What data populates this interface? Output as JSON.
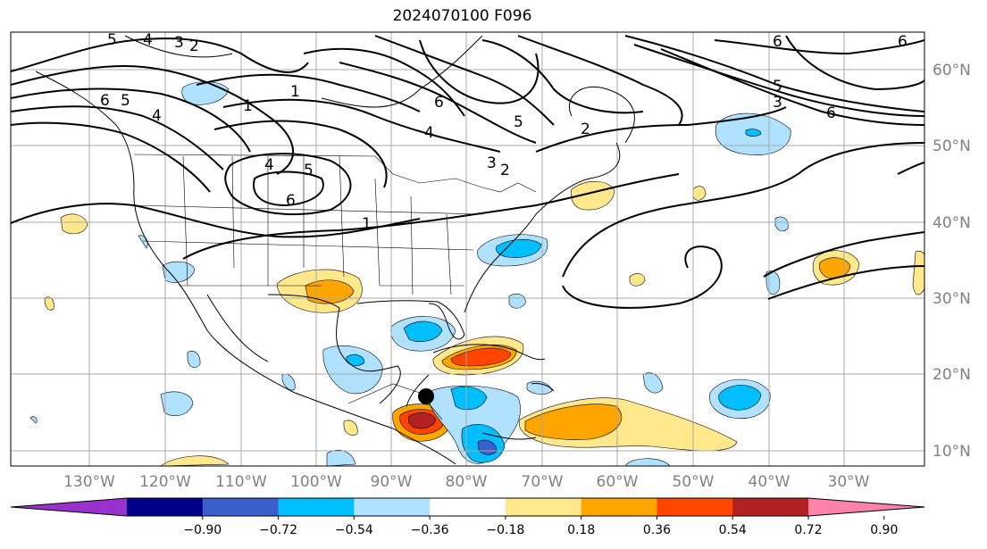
{
  "title": "2024070100 F096",
  "lon_labels": [
    "130°W",
    "120°W",
    "110°W",
    "100°W",
    "90°W",
    "80°W",
    "70°W",
    "60°W",
    "50°W",
    "40°W",
    "30°W"
  ],
  "lat_labels": [
    "60°N",
    "50°N",
    "40°N",
    "30°N",
    "20°N",
    "10°N"
  ],
  "colorbar": {
    "ticks": [
      "−0.90",
      "−0.72",
      "−0.54",
      "−0.36",
      "−0.18",
      "0.18",
      "0.36",
      "0.54",
      "0.72",
      "0.90"
    ],
    "colors": [
      "#9932cc",
      "#00008b",
      "#3a5fcd",
      "#00bfff",
      "#b0e2ff",
      "#ffffff",
      "#ffe88c",
      "#ffa500",
      "#ff4500",
      "#b22222",
      "#ff82ab"
    ]
  },
  "contour_labels": [
    "5",
    "4",
    "3",
    "2",
    "6",
    "5",
    "4",
    "1",
    "6",
    "5",
    "4",
    "3",
    "2",
    "1",
    "4",
    "5",
    "6",
    "1",
    "6",
    "6",
    "5",
    "3",
    "6",
    "2"
  ],
  "marker": "storm-center"
}
